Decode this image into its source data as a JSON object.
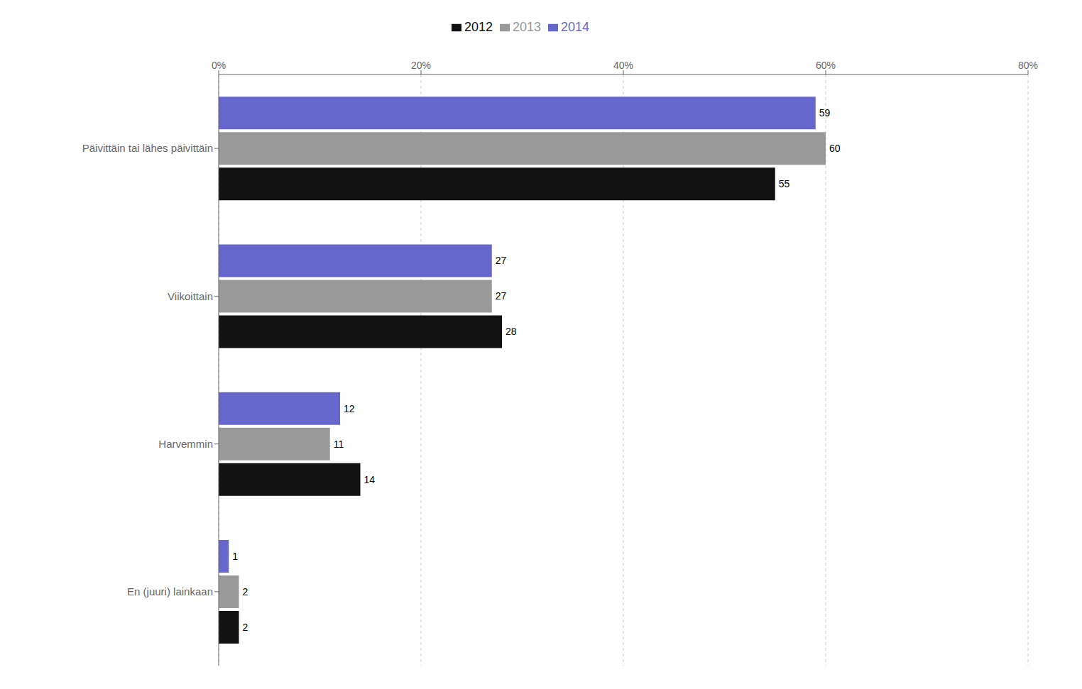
{
  "chart_data": {
    "type": "bar",
    "orientation": "horizontal",
    "categories": [
      "Päivittäin tai lähes päivittäin",
      "Viikoittain",
      "Harvemmin",
      "En (juuri) lainkaan"
    ],
    "series": [
      {
        "name": "2014",
        "color": "#6666cc",
        "values": [
          59,
          27,
          12,
          1
        ]
      },
      {
        "name": "2013",
        "color": "#999999",
        "values": [
          60,
          27,
          11,
          2
        ]
      },
      {
        "name": "2012",
        "color": "#111111",
        "values": [
          55,
          28,
          14,
          2
        ]
      }
    ],
    "xlim": [
      0,
      80
    ],
    "xticks": [
      {
        "value": 0,
        "label": "0%"
      },
      {
        "value": 20,
        "label": "20%"
      },
      {
        "value": 40,
        "label": "40%"
      },
      {
        "value": 60,
        "label": "60%"
      },
      {
        "value": 80,
        "label": "80%"
      }
    ],
    "grid": true,
    "legend": "top",
    "data_labels": true
  }
}
